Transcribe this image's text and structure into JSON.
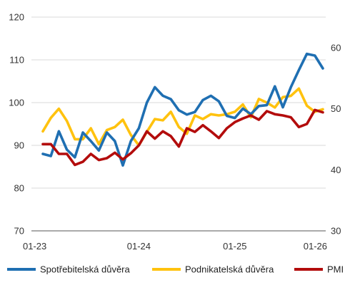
{
  "chart_data": {
    "type": "line",
    "title": "",
    "xlabel": "",
    "ylabel": "",
    "x_tick_labels": [
      "01-23",
      "01-24",
      "01-25",
      "01-26"
    ],
    "x_tick_index": [
      0,
      12,
      24,
      36
    ],
    "y_left": {
      "ylim": [
        70,
        120
      ],
      "ticks": [
        "70",
        "80",
        "90",
        "100",
        "110",
        "120"
      ]
    },
    "y_right": {
      "ylim": [
        30,
        65
      ],
      "ticks": [
        "30",
        "40",
        "50",
        "60"
      ]
    },
    "grid": "horizontal",
    "legend_position": "bottom",
    "series": [
      {
        "name": "Spotřebitelská důvěra",
        "axis": "left",
        "color": "#1f6fb2",
        "values": [
          88,
          87.5,
          93.3,
          89,
          87.2,
          93,
          91,
          88.8,
          93,
          91,
          85.3,
          91,
          94,
          100,
          103.6,
          101.6,
          100.8,
          98.2,
          97.2,
          97.8,
          100.6,
          101.6,
          100.3,
          96.9,
          96.4,
          98.6,
          97.3,
          99.2,
          99.4,
          103.8,
          98.9,
          103.6,
          107.6,
          111.4,
          111,
          108
        ]
      },
      {
        "name": "Podnikatelská důvěra",
        "axis": "right",
        "color": "#ffc20e",
        "values": [
          46.3,
          48.5,
          50,
          48,
          45,
          45,
          46.8,
          44.2,
          46.5,
          47,
          48.2,
          45.7,
          44,
          46.2,
          48.3,
          48.1,
          49.5,
          47,
          45.9,
          48.9,
          48.3,
          49.1,
          48.9,
          49.1,
          49.5,
          50.7,
          48.6,
          51.6,
          51,
          50.2,
          51.9,
          52.1,
          53.3,
          50.5,
          49.5,
          49.9
        ]
      },
      {
        "name": "PMI",
        "axis": "right",
        "color": "#b30c0c",
        "values": [
          44.2,
          44.2,
          42.6,
          42.6,
          40.8,
          41.3,
          42.6,
          41.6,
          41.9,
          42.8,
          41.7,
          42.7,
          44,
          46.3,
          45.1,
          46.3,
          45.5,
          43.8,
          46.8,
          46.2,
          47.3,
          46.3,
          45.2,
          46.8,
          47.8,
          48.4,
          48.9,
          48.2,
          49.6,
          49.1,
          48.9,
          48.6,
          47,
          47.5,
          49.8,
          49.4
        ]
      }
    ]
  }
}
